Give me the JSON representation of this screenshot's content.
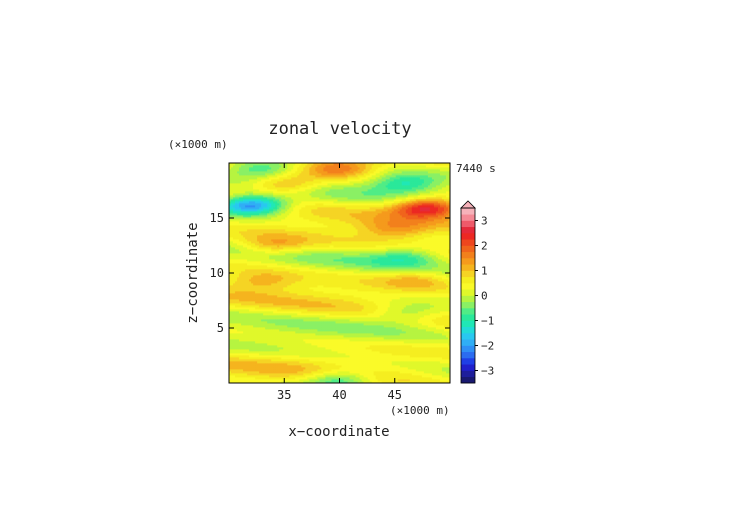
{
  "chart_data": {
    "type": "heatmap",
    "title": "zonal velocity",
    "xlabel": "x−coordinate",
    "ylabel": "z−coordinate",
    "x_unit": "(×1000 m)",
    "y_unit": "(×1000 m)",
    "time_label": "7440 s",
    "xlim": [
      30,
      50
    ],
    "ylim": [
      0,
      20
    ],
    "x_ticks": [
      35,
      40,
      45
    ],
    "y_ticks": [
      5,
      10,
      15
    ],
    "colorbar": {
      "ticks": [
        3,
        2,
        1,
        0,
        -1,
        -2,
        -3
      ],
      "tick_labels": [
        "3",
        "2",
        "1",
        "0",
        "−1",
        "−2",
        "−3"
      ],
      "levels": [
        -3.5,
        -3.25,
        -3,
        -2.75,
        -2.5,
        -2.25,
        -2,
        -1.75,
        -1.5,
        -1.25,
        -1,
        -0.75,
        -0.5,
        -0.25,
        0,
        0.25,
        0.5,
        0.75,
        1,
        1.25,
        1.5,
        1.75,
        2,
        2.25,
        2.5,
        2.75,
        3,
        3.25,
        3.5
      ],
      "colors": [
        "#191970",
        "#1e1e9c",
        "#2020cc",
        "#1f3fe6",
        "#2b6cf0",
        "#2f8ff5",
        "#30aef5",
        "#29c8f0",
        "#22dcd8",
        "#20e8b6",
        "#2ae89a",
        "#50ec86",
        "#8af064",
        "#b6f440",
        "#e0f82a",
        "#fafa28",
        "#f5ee20",
        "#f5d424",
        "#f5b41e",
        "#f59a1c",
        "#f2801c",
        "#f0641c",
        "#ee461e",
        "#ec2822",
        "#e42a3a",
        "#ee5a6a",
        "#f58a96",
        "#f7b2ba"
      ],
      "extend": "max"
    },
    "field_features": [
      {
        "x": 32,
        "z": 16.2,
        "value": -2.8
      },
      {
        "x": 48,
        "z": 16.0,
        "value": 2.5
      },
      {
        "x": 46,
        "z": 18.2,
        "value": -1.3
      },
      {
        "x": 35,
        "z": 18.0,
        "value": 1.2
      },
      {
        "x": 34,
        "z": 12.5,
        "value": 1.0
      },
      {
        "x": 46,
        "z": 11.5,
        "value": -1.0
      },
      {
        "x": 33,
        "z": 9.3,
        "value": 0.8
      },
      {
        "x": 47,
        "z": 9.5,
        "value": 0.7
      },
      {
        "x": 45,
        "z": 14.0,
        "value": 0.9
      },
      {
        "x": 46,
        "z": 6.4,
        "value": -0.8
      },
      {
        "x": 40,
        "z": 19.6,
        "value": 1.4
      },
      {
        "x": 33,
        "z": 19.5,
        "value": -1.3
      },
      {
        "x": 40,
        "z": 0.4,
        "value": -1.4
      }
    ]
  }
}
